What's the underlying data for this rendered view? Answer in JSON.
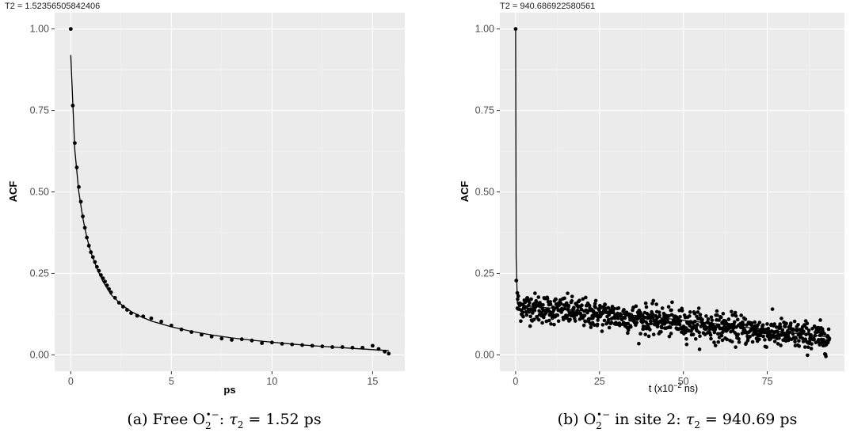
{
  "panels": [
    {
      "title": "T2 = 1.52356505842406",
      "xlabel": "ps",
      "ylabel": "ACF",
      "caption": {
        "prefix": "(a) Free O",
        "sub": "2",
        "sup": "•−",
        "mid": ": ",
        "tau": "τ",
        "tau_sub": "2",
        "value": " = 1.52 ps"
      }
    },
    {
      "title": "T2 = 940.686922580561",
      "xlabel_main": "t (x10",
      "xlabel_sup": "−2",
      "xlabel_tail": " ns)",
      "ylabel": "ACF",
      "caption": {
        "prefix": "(b) O",
        "sub": "2",
        "sup": "•−",
        "mid": " in site 2: ",
        "tau": "τ",
        "tau_sub": "2",
        "value": " = 940.69 ps"
      }
    }
  ],
  "chart_data": [
    {
      "type": "scatter",
      "title": "T2 = 1.52356505842406",
      "xlabel": "ps",
      "ylabel": "ACF",
      "xlim": [
        -0.8,
        16.6
      ],
      "ylim": [
        -0.05,
        1.05
      ],
      "xticks": [
        0,
        5,
        10,
        15
      ],
      "xtick_labels": [
        "0",
        "5",
        "10",
        "15"
      ],
      "yticks": [
        0,
        0.25,
        0.5,
        0.75,
        1
      ],
      "ytick_labels": [
        "0.00",
        "0.25",
        "0.50",
        "0.75",
        "1.00"
      ],
      "grid": true,
      "series": [
        {
          "kind": "points",
          "x": [
            0,
            0.1,
            0.2,
            0.3,
            0.4,
            0.5,
            0.6,
            0.7,
            0.8,
            0.9,
            1.0,
            1.1,
            1.2,
            1.3,
            1.4,
            1.5,
            1.6,
            1.7,
            1.8,
            1.9,
            2.0,
            2.2,
            2.4,
            2.6,
            2.8,
            3.0,
            3.3,
            3.6,
            4.0,
            4.5,
            5.0,
            5.5,
            6.0,
            6.5,
            7.0,
            7.5,
            8.0,
            8.5,
            9.0,
            9.5,
            10.0,
            10.5,
            11.0,
            11.5,
            12.0,
            12.5,
            13.0,
            13.5,
            14.0,
            14.5,
            15.0,
            15.3,
            15.6,
            15.8
          ],
          "y": [
            1.0,
            0.765,
            0.65,
            0.575,
            0.515,
            0.47,
            0.425,
            0.39,
            0.36,
            0.335,
            0.315,
            0.3,
            0.285,
            0.27,
            0.258,
            0.245,
            0.235,
            0.225,
            0.213,
            0.202,
            0.192,
            0.175,
            0.16,
            0.148,
            0.138,
            0.128,
            0.12,
            0.118,
            0.112,
            0.102,
            0.09,
            0.078,
            0.07,
            0.062,
            0.056,
            0.05,
            0.046,
            0.048,
            0.044,
            0.036,
            0.038,
            0.034,
            0.032,
            0.03,
            0.028,
            0.026,
            0.024,
            0.024,
            0.022,
            0.022,
            0.028,
            0.018,
            0.01,
            0.004
          ]
        },
        {
          "kind": "fit_line",
          "x": [
            0,
            0.2,
            0.4,
            0.6,
            0.8,
            1.0,
            1.3,
            1.6,
            2.0,
            2.5,
            3.0,
            3.5,
            4.0,
            5.0,
            6.0,
            7.0,
            8.0,
            9.0,
            10.0,
            11.0,
            12.0,
            13.0,
            14.0,
            15.0,
            15.8
          ],
          "y": [
            0.92,
            0.63,
            0.5,
            0.42,
            0.36,
            0.315,
            0.265,
            0.225,
            0.185,
            0.155,
            0.133,
            0.117,
            0.104,
            0.086,
            0.072,
            0.061,
            0.052,
            0.045,
            0.039,
            0.033,
            0.028,
            0.024,
            0.02,
            0.016,
            0.013
          ]
        }
      ]
    },
    {
      "type": "scatter",
      "title": "T2 = 940.686922580561",
      "xlabel": "t (x10−2 ns)",
      "ylabel": "ACF",
      "xlim": [
        -4.7,
        98.0
      ],
      "ylim": [
        -0.05,
        1.05
      ],
      "xticks": [
        0,
        25,
        50,
        75
      ],
      "xtick_labels": [
        "0",
        "25",
        "50",
        "75"
      ],
      "yticks": [
        0,
        0.25,
        0.5,
        0.75,
        1
      ],
      "ytick_labels": [
        "0.00",
        "0.25",
        "0.50",
        "0.75",
        "1.00"
      ],
      "grid": true,
      "series": [
        {
          "kind": "points",
          "description_of_trend": "initial 1.00 at t=0, drops to ~0.23 immediately, then noisy cloud declining from ~0.15 at t=1 to ~0.05 at t=93",
          "x": [
            0,
            0.2,
            0.5
          ],
          "y": [
            1.0,
            0.228,
            0.19
          ],
          "noisy_cloud": {
            "x_range": [
              0.5,
              93.5
            ],
            "y_start": 0.15,
            "y_end": 0.05,
            "spread": 0.022,
            "count": 900
          }
        },
        {
          "kind": "fit_line",
          "x": [
            0,
            0.15,
            0.5,
            1,
            10,
            20,
            30,
            40,
            50,
            60,
            70,
            80,
            93
          ],
          "y": [
            1.0,
            0.3,
            0.16,
            0.152,
            0.144,
            0.135,
            0.126,
            0.117,
            0.106,
            0.095,
            0.083,
            0.07,
            0.055
          ]
        }
      ]
    }
  ]
}
